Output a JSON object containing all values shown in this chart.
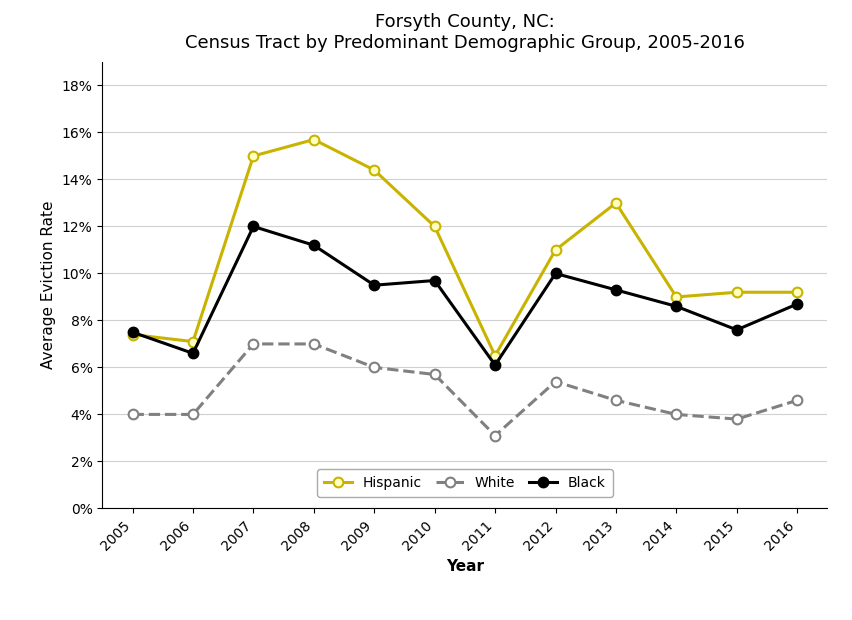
{
  "title": "Forsyth County, NC:\nCensus Tract by Predominant Demographic Group, 2005-2016",
  "xlabel": "Year",
  "ylabel": "Average Eviction Rate",
  "years": [
    2005,
    2006,
    2007,
    2008,
    2009,
    2010,
    2011,
    2012,
    2013,
    2014,
    2015,
    2016
  ],
  "hispanic": [
    0.074,
    0.071,
    0.15,
    0.157,
    0.144,
    0.12,
    0.065,
    0.11,
    0.13,
    0.09,
    0.092,
    0.092
  ],
  "white": [
    0.04,
    0.04,
    0.07,
    0.07,
    0.06,
    0.057,
    0.031,
    0.054,
    0.046,
    0.04,
    0.038,
    0.046
  ],
  "black": [
    0.075,
    0.066,
    0.12,
    0.112,
    0.095,
    0.097,
    0.061,
    0.1,
    0.093,
    0.086,
    0.076,
    0.087
  ],
  "hispanic_color": "#c8b400",
  "white_color": "#808080",
  "black_color": "#000000",
  "ylim": [
    0,
    0.19
  ],
  "yticks": [
    0,
    0.02,
    0.04,
    0.06,
    0.08,
    0.1,
    0.12,
    0.14,
    0.16,
    0.18
  ],
  "background_color": "#ffffff",
  "title_fontsize": 13,
  "axis_label_fontsize": 11,
  "tick_fontsize": 10,
  "legend_fontsize": 10,
  "linewidth": 2.2,
  "markersize": 7
}
